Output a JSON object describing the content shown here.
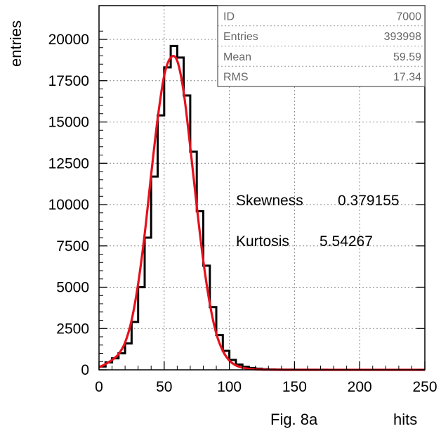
{
  "chart_data": {
    "type": "histogram",
    "ylabel": "entries",
    "xlabel": "hits",
    "figure_label": "Fig. 8a",
    "xlim": [
      0,
      250
    ],
    "ylim": [
      0,
      21000
    ],
    "x_ticks": [
      0,
      50,
      100,
      150,
      200,
      250
    ],
    "y_ticks": [
      0,
      2500,
      5000,
      7500,
      10000,
      12500,
      15000,
      17500,
      20000
    ],
    "grid": true,
    "stats": [
      {
        "label": "ID",
        "value": "7000"
      },
      {
        "label": "Entries",
        "value": "393998"
      },
      {
        "label": "Mean",
        "value": "59.59"
      },
      {
        "label": "RMS",
        "value": "17.34"
      }
    ],
    "annotations": [
      {
        "label": "Skewness",
        "value": "0.379155"
      },
      {
        "label": "Kurtosis",
        "value": "5.54267"
      }
    ],
    "series": [
      {
        "style": "histogram",
        "color": "#000000",
        "x": [
          0,
          5,
          10,
          15,
          20,
          25,
          30,
          35,
          40,
          45,
          50,
          55,
          60,
          65,
          70,
          75,
          80,
          85,
          90,
          95,
          100,
          105,
          110,
          115,
          120,
          125,
          130,
          135,
          140,
          150,
          175,
          200,
          225,
          250
        ],
        "values": [
          200,
          450,
          700,
          1000,
          1600,
          2900,
          5000,
          8000,
          11700,
          15400,
          18300,
          19600,
          18900,
          16600,
          13200,
          9600,
          6300,
          3800,
          2100,
          1150,
          600,
          320,
          180,
          110,
          70,
          40,
          25,
          15,
          10,
          5,
          2,
          1,
          0,
          0
        ]
      },
      {
        "style": "fit",
        "color": "#e8101c",
        "x": [
          0,
          5,
          10,
          15,
          20,
          25,
          30,
          35,
          40,
          45,
          50,
          55,
          60,
          65,
          70,
          75,
          80,
          85,
          90,
          95,
          100,
          105,
          110,
          115,
          120,
          125,
          130,
          135,
          140,
          150,
          175,
          200,
          225,
          250
        ],
        "values": [
          150,
          350,
          600,
          950,
          1650,
          3000,
          5200,
          8200,
          11800,
          15200,
          17800,
          18900,
          18700,
          16800,
          13500,
          9900,
          6600,
          4000,
          2200,
          1150,
          560,
          270,
          130,
          60,
          30,
          15,
          8,
          4,
          2,
          1,
          0,
          0,
          0,
          0
        ]
      }
    ]
  }
}
